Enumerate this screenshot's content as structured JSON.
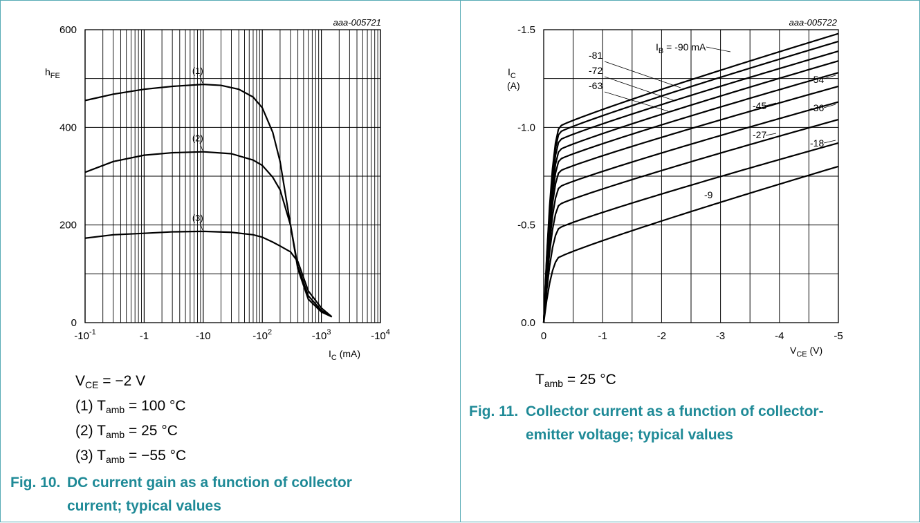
{
  "colors": {
    "caption": "#1f8a97",
    "border": "#55aab4",
    "grid": "#000000",
    "curve": "#000000"
  },
  "fig10": {
    "code": "aaa-005721",
    "ylabel_main": "h",
    "ylabel_sub": "FE",
    "xlabel_main": "I",
    "xlabel_sub": "C",
    "xlabel_unit": " (mA)",
    "conditions": {
      "vce_main": "V",
      "vce_sub": "CE",
      "vce_value": " = −2 V",
      "c1_prefix": "(1) T",
      "c1_sub": "amb",
      "c1_value": " = 100 °C",
      "c2_prefix": "(2) T",
      "c2_sub": "amb",
      "c2_value": " = 25 °C",
      "c3_prefix": "(3) T",
      "c3_sub": "amb",
      "c3_value": " = −55 °C"
    },
    "caption_number": "Fig. 10.",
    "caption_line1": "DC current gain as a function of collector",
    "caption_line2": "current; typical values"
  },
  "fig11": {
    "code": "aaa-005722",
    "ylabel_main": "I",
    "ylabel_sub": "C",
    "ylabel_unit": "(A)",
    "xlabel_main": "V",
    "xlabel_sub": "CE",
    "xlabel_unit": " (V)",
    "ib_main": "I",
    "ib_sub": "B",
    "ib_value": " = -90 mA",
    "conditions": {
      "t_main": "T",
      "t_sub": "amb",
      "t_value": " = 25 °C"
    },
    "caption_number": "Fig. 11.",
    "caption_line1": "Collector current as a function of collector-",
    "caption_line2": "emitter voltage; typical values"
  },
  "chart_data": [
    {
      "type": "line",
      "title": "",
      "xscale": "log",
      "xlim": [
        -0.1,
        -10000
      ],
      "ylim": [
        0,
        600
      ],
      "x_ticks": [
        {
          "value": -0.1,
          "mantissa": "-10",
          "exp": "-1"
        },
        {
          "value": -1,
          "mantissa": "-1",
          "exp": ""
        },
        {
          "value": -10,
          "mantissa": "-10",
          "exp": ""
        },
        {
          "value": -100,
          "mantissa": "-10",
          "exp": "2"
        },
        {
          "value": -1000,
          "mantissa": "-10",
          "exp": "3"
        },
        {
          "value": -10000,
          "mantissa": "-10",
          "exp": "4"
        }
      ],
      "y_ticks": [
        0,
        200,
        400,
        600
      ],
      "y_grid": [
        0,
        100,
        200,
        300,
        400,
        500,
        600
      ],
      "grid": true,
      "series": [
        {
          "name": "(1)",
          "x": [
            -0.1,
            -0.3,
            -1,
            -3,
            -10,
            -20,
            -40,
            -70,
            -100,
            -150,
            -200,
            -300,
            -400,
            -600,
            -1000,
            -1500
          ],
          "y": [
            455,
            468,
            478,
            484,
            488,
            486,
            478,
            462,
            440,
            390,
            330,
            200,
            115,
            55,
            25,
            12
          ]
        },
        {
          "name": "(2)",
          "x": [
            -0.1,
            -0.3,
            -1,
            -3,
            -10,
            -30,
            -70,
            -100,
            -150,
            -200,
            -300,
            -400,
            -600,
            -1000,
            -1500
          ],
          "y": [
            308,
            330,
            343,
            348,
            350,
            346,
            333,
            322,
            298,
            272,
            200,
            110,
            48,
            22,
            12
          ]
        },
        {
          "name": "(3)",
          "x": [
            -0.1,
            -0.3,
            -1,
            -3,
            -10,
            -30,
            -70,
            -100,
            -150,
            -200,
            -300,
            -400,
            -600,
            -1000,
            -1500
          ],
          "y": [
            173,
            180,
            183,
            186,
            187,
            185,
            180,
            175,
            165,
            157,
            145,
            125,
            65,
            30,
            12
          ]
        }
      ]
    },
    {
      "type": "line",
      "title": "",
      "xlim": [
        0,
        -5
      ],
      "ylim": [
        0,
        -1.5
      ],
      "x_ticks": [
        0,
        -1,
        -2,
        -3,
        -4,
        -5
      ],
      "x_tick_labels": [
        "0",
        "-1",
        "-2",
        "-3",
        "-4",
        "-5"
      ],
      "y_ticks": [
        0,
        -0.5,
        -1,
        -1.5
      ],
      "y_tick_labels": [
        "0.0",
        "-0.5",
        "-1.0",
        "-1.5"
      ],
      "y_grid": [
        0,
        -0.25,
        -0.5,
        -0.75,
        -1,
        -1.25,
        -1.5
      ],
      "x_grid": [
        0,
        -0.5,
        -1,
        -1.5,
        -2,
        -2.5,
        -3,
        -3.5,
        -4,
        -4.5,
        -5
      ],
      "grid": true,
      "series": [
        {
          "name": "-9",
          "ib_ma": -9,
          "knee_v": -0.3,
          "knee_i": -0.34,
          "end_i": -0.8
        },
        {
          "name": "-18",
          "ib_ma": -18,
          "knee_v": -0.3,
          "knee_i": -0.49,
          "end_i": -0.92
        },
        {
          "name": "-27",
          "ib_ma": -27,
          "knee_v": -0.3,
          "knee_i": -0.61,
          "end_i": -1.04
        },
        {
          "name": "-36",
          "ib_ma": -36,
          "knee_v": -0.3,
          "knee_i": -0.7,
          "end_i": -1.13
        },
        {
          "name": "-45",
          "ib_ma": -45,
          "knee_v": -0.3,
          "knee_i": -0.78,
          "end_i": -1.21
        },
        {
          "name": "-54",
          "ib_ma": -54,
          "knee_v": -0.3,
          "knee_i": -0.84,
          "end_i": -1.28
        },
        {
          "name": "-63",
          "ib_ma": -63,
          "knee_v": -0.3,
          "knee_i": -0.89,
          "end_i": -1.34
        },
        {
          "name": "-72",
          "ib_ma": -72,
          "knee_v": -0.3,
          "knee_i": -0.94,
          "end_i": -1.39
        },
        {
          "name": "-81",
          "ib_ma": -81,
          "knee_v": -0.3,
          "knee_i": -0.98,
          "end_i": -1.44
        },
        {
          "name": "-90",
          "ib_ma": -90,
          "knee_v": -0.3,
          "knee_i": -1.01,
          "end_i": -1.48
        }
      ]
    }
  ]
}
